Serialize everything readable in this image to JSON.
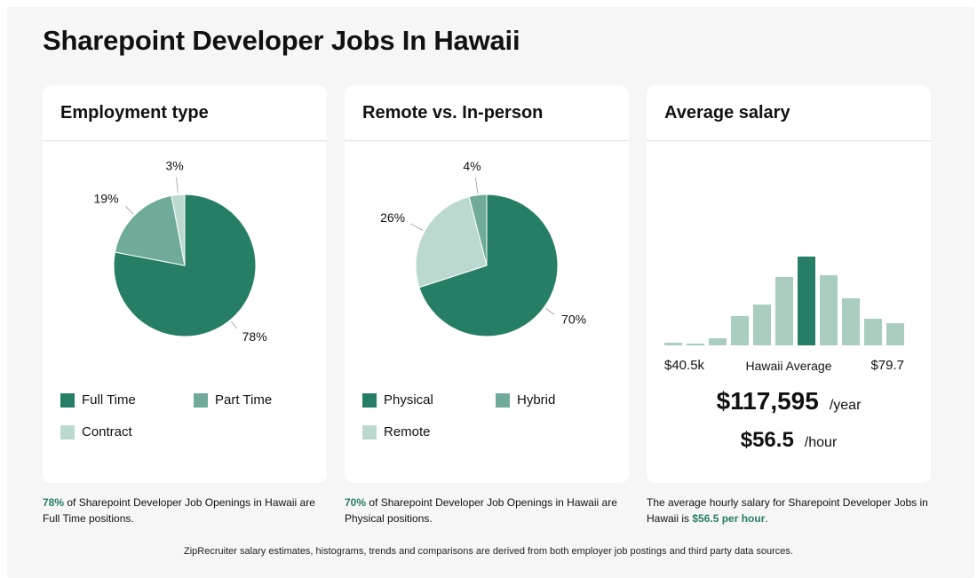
{
  "page_title": "Sharepoint Developer Jobs In Hawaii",
  "colors": {
    "dark": "#277e67",
    "medium": "#6fab98",
    "light": "#bcd9d0",
    "hist_light": "#a9cdbf"
  },
  "employment": {
    "title": "Employment type",
    "caption_pct": "78%",
    "caption_text": " of Sharepoint Developer Job Openings in Hawaii are Full Time positions.",
    "legend": [
      "Full Time",
      "Part Time",
      "Contract"
    ]
  },
  "remote": {
    "title": "Remote vs. In-person",
    "caption_pct": "70%",
    "caption_text": " of Sharepoint Developer Job Openings in Hawaii are Physical positions.",
    "legend": [
      "Physical",
      "Hybrid",
      "Remote"
    ]
  },
  "salary": {
    "title": "Average salary",
    "min_label": "$40.5k",
    "avg_label": "Hawaii Average",
    "max_label": "$79.7",
    "yearly": "$117,595",
    "yearly_unit": "/year",
    "hourly": "$56.5",
    "hourly_unit": "/hour",
    "caption_text": "The average hourly salary for Sharepoint Developer Jobs in Hawaii is ",
    "caption_value": "$56.5 per hour",
    "caption_end": "."
  },
  "footer": "ZipRecruiter salary estimates, histograms, trends and comparisons are derived from both employer job postings and third party data sources.",
  "chart_data": [
    {
      "type": "pie",
      "title": "Employment type",
      "labels": [
        "Full Time",
        "Part Time",
        "Contract"
      ],
      "values": [
        78,
        19,
        3
      ],
      "value_labels": [
        "78%",
        "19%",
        "3%"
      ],
      "colors": [
        "#277e67",
        "#6fab98",
        "#bcd9d0"
      ]
    },
    {
      "type": "pie",
      "title": "Remote vs. In-person",
      "labels": [
        "Physical",
        "Remote",
        "Hybrid"
      ],
      "values": [
        70,
        26,
        4
      ],
      "value_labels": [
        "70%",
        "26%",
        "4%"
      ],
      "colors": [
        "#277e67",
        "#bcd9d0",
        "#6fab98"
      ]
    },
    {
      "type": "bar",
      "title": "Average salary",
      "values": [
        3,
        2,
        8,
        33,
        46,
        77,
        100,
        79,
        53,
        30,
        25
      ],
      "highlight_index": 6,
      "xlabel_min": "$40.5k",
      "xlabel_max": "$79.7",
      "ylim": [
        0,
        100
      ]
    }
  ]
}
